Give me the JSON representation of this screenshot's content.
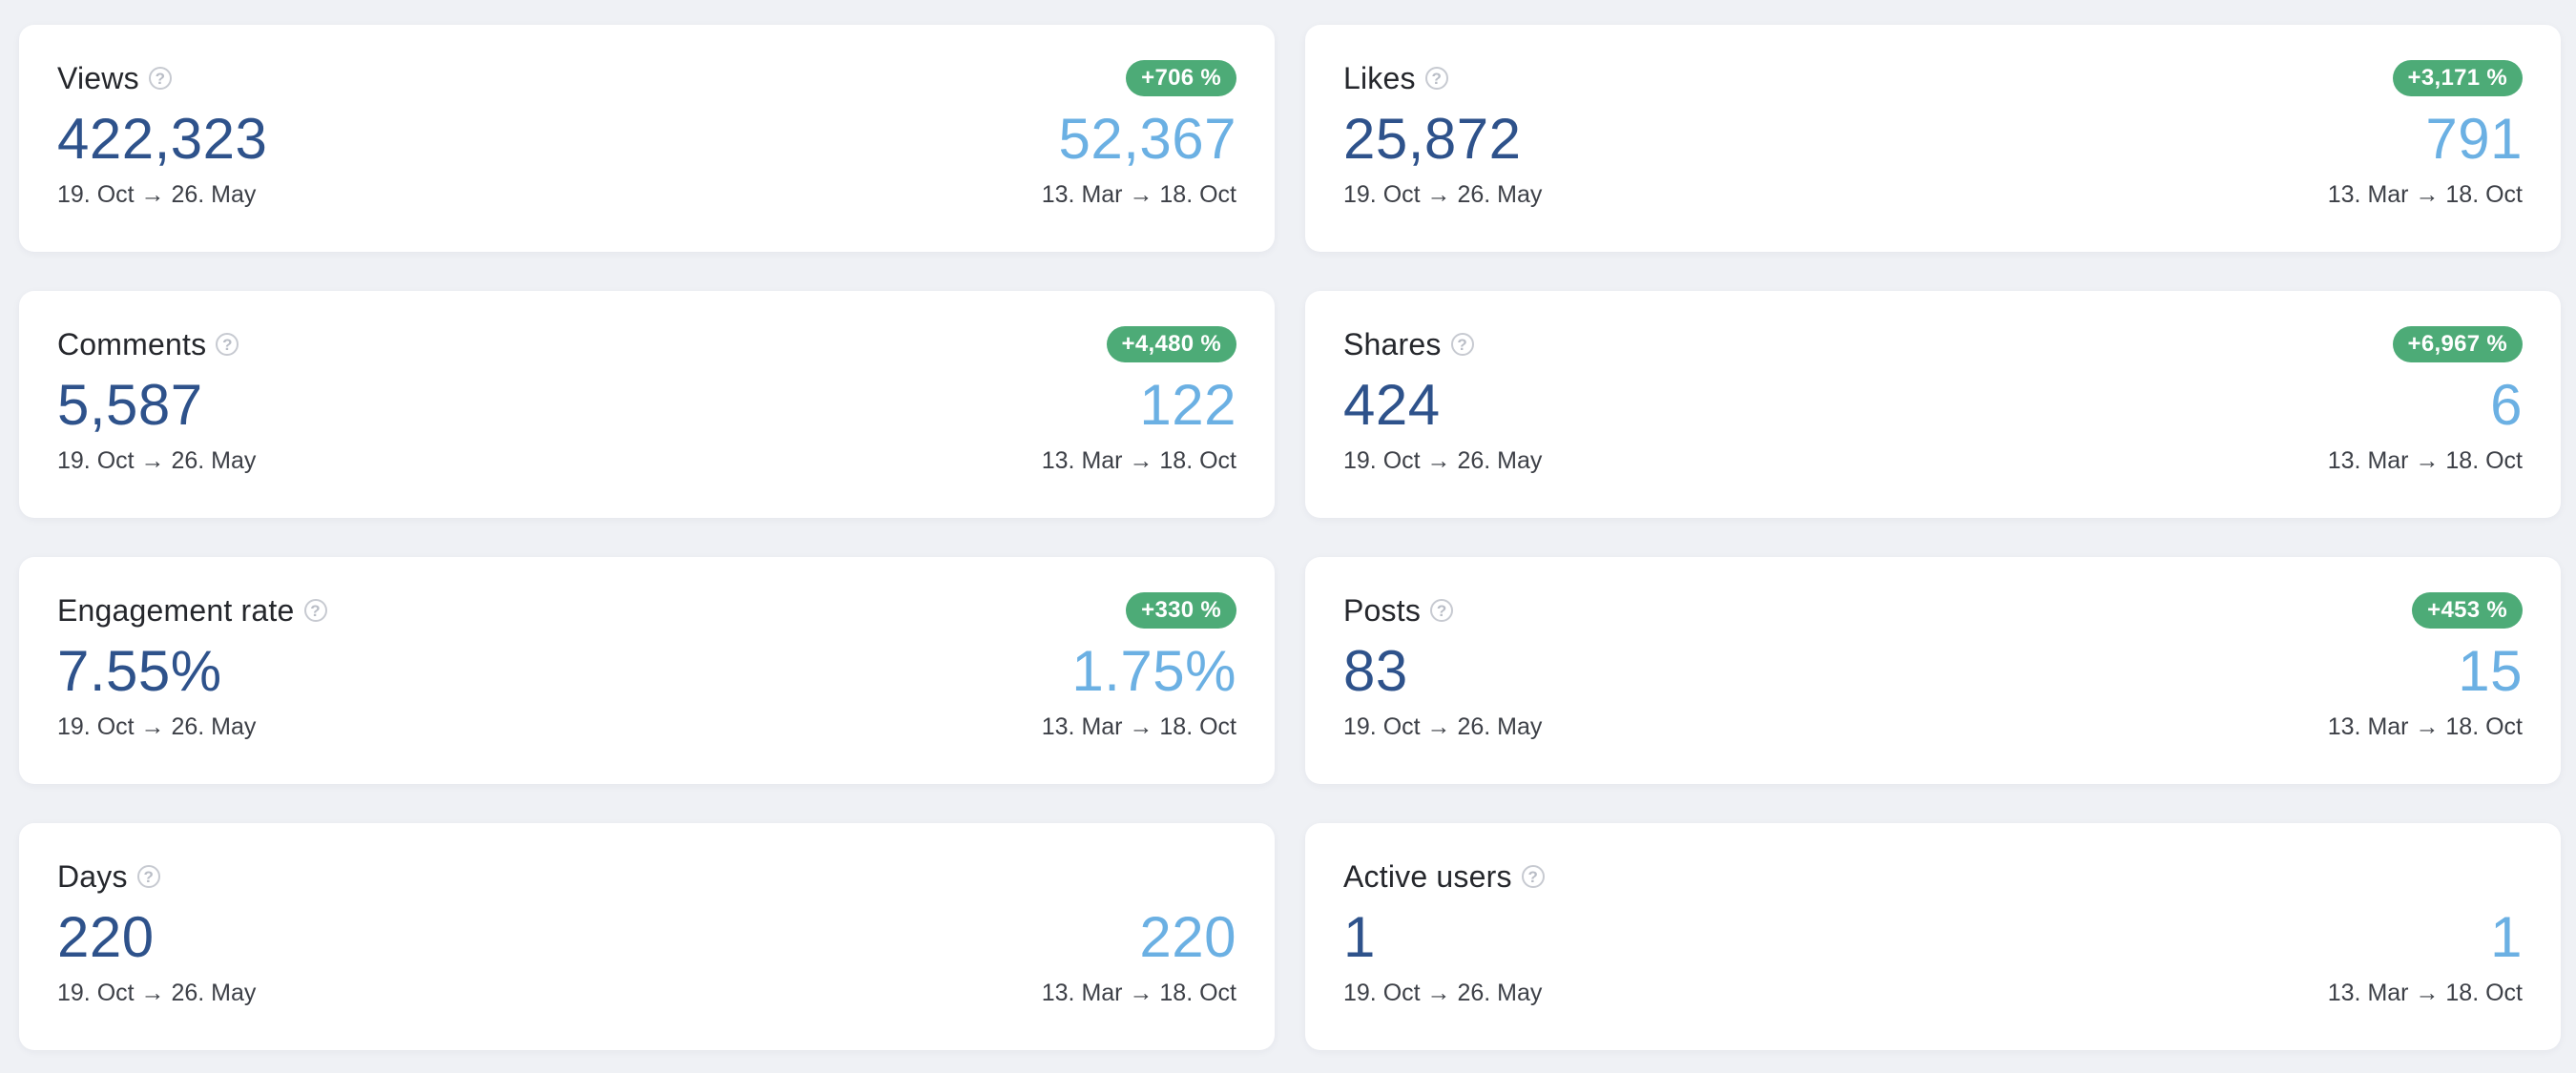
{
  "colors": {
    "page_background": "#eff1f5",
    "card_background": "#ffffff",
    "current_value": "#2e528b",
    "previous_value": "#6bb0e3",
    "badge_background": "#4dab77",
    "badge_text": "#ffffff"
  },
  "help_icon_glyph": "?",
  "cards": [
    {
      "title": "Views",
      "badge": "+706 %",
      "current_value": "422,323",
      "current_range": "19. Oct → 26. May",
      "previous_value": "52,367",
      "previous_range": "13. Mar → 18. Oct"
    },
    {
      "title": "Likes",
      "badge": "+3,171 %",
      "current_value": "25,872",
      "current_range": "19. Oct → 26. May",
      "previous_value": "791",
      "previous_range": "13. Mar → 18. Oct"
    },
    {
      "title": "Comments",
      "badge": "+4,480 %",
      "current_value": "5,587",
      "current_range": "19. Oct → 26. May",
      "previous_value": "122",
      "previous_range": "13. Mar → 18. Oct"
    },
    {
      "title": "Shares",
      "badge": "+6,967 %",
      "current_value": "424",
      "current_range": "19. Oct → 26. May",
      "previous_value": "6",
      "previous_range": "13. Mar → 18. Oct"
    },
    {
      "title": "Engagement rate",
      "badge": "+330 %",
      "current_value": "7.55%",
      "current_range": "19. Oct → 26. May",
      "previous_value": "1.75%",
      "previous_range": "13. Mar → 18. Oct"
    },
    {
      "title": "Posts",
      "badge": "+453 %",
      "current_value": "83",
      "current_range": "19. Oct → 26. May",
      "previous_value": "15",
      "previous_range": "13. Mar → 18. Oct"
    },
    {
      "title": "Days",
      "badge": "",
      "current_value": "220",
      "current_range": "19. Oct → 26. May",
      "previous_value": "220",
      "previous_range": "13. Mar → 18. Oct"
    },
    {
      "title": "Active users",
      "badge": "",
      "current_value": "1",
      "current_range": "19. Oct → 26. May",
      "previous_value": "1",
      "previous_range": "13. Mar → 18. Oct"
    }
  ]
}
